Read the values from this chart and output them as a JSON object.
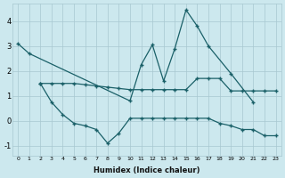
{
  "xlabel": "Humidex (Indice chaleur)",
  "background_color": "#cce8ee",
  "grid_color": "#a8c8d0",
  "line_color": "#1a6068",
  "x_ticks": [
    0,
    1,
    2,
    3,
    4,
    5,
    6,
    7,
    8,
    9,
    10,
    11,
    12,
    13,
    14,
    15,
    16,
    17,
    18,
    19,
    20,
    21,
    22,
    23
  ],
  "ylim": [
    -1.4,
    4.7
  ],
  "yticks": [
    -1,
    0,
    1,
    2,
    3,
    4
  ],
  "line1_x": [
    0,
    1,
    10,
    11,
    12,
    13,
    14,
    15,
    16,
    17,
    19,
    21
  ],
  "line1_y": [
    3.1,
    2.7,
    0.8,
    2.25,
    3.05,
    1.6,
    2.9,
    4.45,
    3.8,
    3.0,
    1.9,
    0.75
  ],
  "line2_x": [
    2,
    3,
    4,
    5,
    6,
    7,
    8,
    9,
    10,
    11,
    12,
    13,
    14,
    15,
    16,
    17,
    18,
    19,
    20,
    21,
    22,
    23
  ],
  "line2_y": [
    1.5,
    1.5,
    1.5,
    1.5,
    1.45,
    1.4,
    1.35,
    1.3,
    1.25,
    1.25,
    1.25,
    1.25,
    1.25,
    1.25,
    1.7,
    1.7,
    1.7,
    1.2,
    1.2,
    1.2,
    1.2,
    1.2
  ],
  "line3_x": [
    2,
    3,
    4,
    5,
    6,
    7,
    8,
    9,
    10,
    11,
    12,
    13,
    14,
    15,
    16,
    17,
    18,
    19,
    20,
    21,
    22,
    23
  ],
  "line3_y": [
    1.5,
    0.75,
    0.25,
    -0.1,
    -0.2,
    -0.35,
    -0.9,
    -0.5,
    0.1,
    0.1,
    0.1,
    0.1,
    0.1,
    0.1,
    0.1,
    0.1,
    -0.1,
    -0.2,
    -0.35,
    -0.35,
    -0.6,
    -0.6
  ]
}
